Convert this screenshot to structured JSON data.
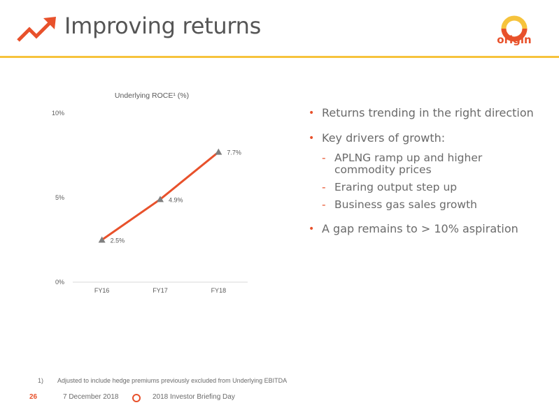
{
  "header": {
    "title": "Improving returns",
    "logo_text": "origin"
  },
  "colors": {
    "accent": "#e8512b",
    "rule": "#f6c33c",
    "marker": "#7f7f7f"
  },
  "chart_data": {
    "type": "line",
    "title": "Underlying ROCE¹ (%)",
    "categories": [
      "FY16",
      "FY17",
      "FY18"
    ],
    "series": [
      {
        "values": [
          2.5,
          4.9,
          7.7
        ]
      }
    ],
    "data_labels": [
      "2.5%",
      "4.9%",
      "7.7%"
    ],
    "y_ticks": [
      "0%",
      "5%",
      "10%"
    ],
    "ylim": [
      0,
      10
    ],
    "grid": false
  },
  "bullets": {
    "b1": "Returns trending in the right direction",
    "b2": "Key drivers of growth:",
    "s1": "APLNG ramp up and higher commodity prices",
    "s2": "Eraring output step up",
    "s3": "Business gas sales growth",
    "b3": "A gap remains to > 10% aspiration"
  },
  "footnote": {
    "number": "1)",
    "text": "Adjusted to include hedge premiums previously excluded from Underlying EBITDA"
  },
  "footer": {
    "page": "26",
    "date": "7 December 2018",
    "event": "2018 Investor Briefing Day"
  }
}
